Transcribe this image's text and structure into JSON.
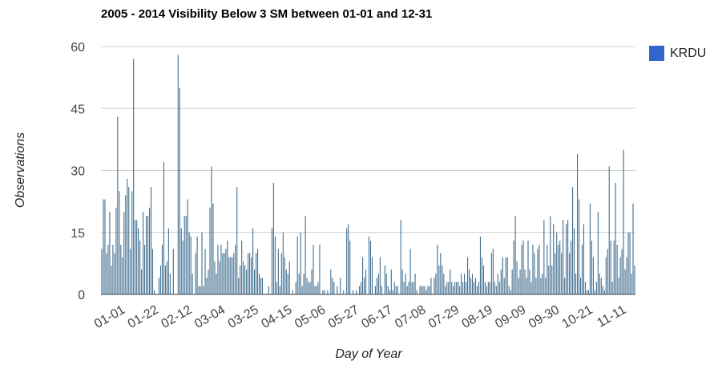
{
  "chart_data": {
    "type": "bar",
    "title": "2005 - 2014 Visibility Below 3 SM between 01-01 and 12-31",
    "xlabel": "Day of Year",
    "ylabel": "Observations",
    "ylim": [
      0,
      60
    ],
    "y_ticks": [
      0,
      15,
      30,
      45,
      60
    ],
    "x_tick_labels": [
      "01-01",
      "01-22",
      "02-12",
      "03-04",
      "03-25",
      "04-15",
      "05-06",
      "05-27",
      "06-17",
      "07-08",
      "07-29",
      "08-19",
      "09-09",
      "09-30",
      "10-21",
      "11-11"
    ],
    "grid": true,
    "legend_position": "right",
    "series": [
      {
        "name": "KRDU",
        "color": "#3366cc",
        "values": [
          11,
          23,
          23,
          10,
          12,
          20,
          7,
          12,
          10,
          21,
          43,
          25,
          12,
          9,
          20,
          24,
          28,
          26,
          11,
          25,
          57,
          18,
          18,
          16,
          13,
          6,
          20,
          12,
          19,
          19,
          21,
          26,
          11,
          1,
          0,
          0,
          4,
          7,
          12,
          32,
          7,
          8,
          16,
          5,
          0,
          11,
          0,
          0,
          58,
          50,
          16,
          13,
          19,
          19,
          23,
          15,
          14,
          5,
          0,
          10,
          14,
          2,
          2,
          15,
          2,
          11,
          4,
          6,
          21,
          31,
          22,
          8,
          5,
          12,
          8,
          12,
          10,
          10,
          11,
          13,
          9,
          9,
          9,
          10,
          12,
          26,
          4,
          7,
          13,
          8,
          7,
          6,
          10,
          10,
          9,
          16,
          6,
          10,
          11,
          5,
          4,
          4,
          0,
          0,
          0,
          2,
          0,
          16,
          27,
          14,
          3,
          11,
          2,
          10,
          15,
          9,
          6,
          5,
          8,
          0,
          1,
          0,
          3,
          14,
          5,
          15,
          2,
          5,
          19,
          4,
          3,
          3,
          6,
          12,
          2,
          2,
          3,
          12,
          0,
          1,
          1,
          0,
          1,
          0,
          6,
          4,
          3,
          0,
          2,
          0,
          4,
          0,
          1,
          0,
          16,
          17,
          13,
          0,
          1,
          0,
          1,
          0,
          2,
          3,
          9,
          4,
          6,
          0,
          14,
          13,
          9,
          0,
          2,
          4,
          5,
          9,
          2,
          0,
          7,
          5,
          2,
          1,
          6,
          1,
          3,
          2,
          2,
          0,
          18,
          6,
          3,
          5,
          2,
          3,
          11,
          3,
          3,
          5,
          1,
          0,
          2,
          2,
          2,
          2,
          1,
          2,
          2,
          4,
          0,
          4,
          5,
          12,
          7,
          10,
          7,
          5,
          2,
          3,
          3,
          6,
          3,
          2,
          3,
          3,
          3,
          2,
          5,
          3,
          5,
          3,
          9,
          6,
          4,
          5,
          3,
          4,
          2,
          3,
          14,
          9,
          7,
          3,
          2,
          3,
          3,
          10,
          11,
          3,
          2,
          5,
          3,
          6,
          9,
          4,
          9,
          9,
          2,
          1,
          6,
          13,
          19,
          8,
          4,
          6,
          12,
          13,
          6,
          4,
          13,
          6,
          3,
          12,
          10,
          4,
          11,
          12,
          4,
          5,
          18,
          4,
          12,
          7,
          19,
          7,
          17,
          10,
          15,
          12,
          13,
          10,
          18,
          4,
          17,
          18,
          10,
          13,
          26,
          16,
          5,
          34,
          23,
          4,
          12,
          17,
          3,
          1,
          1,
          22,
          13,
          9,
          1,
          3,
          20,
          5,
          4,
          2,
          1,
          9,
          11,
          31,
          13,
          3,
          13,
          27,
          12,
          4,
          9,
          11,
          35,
          6,
          9,
          15,
          15,
          5,
          22,
          7
        ]
      }
    ]
  }
}
